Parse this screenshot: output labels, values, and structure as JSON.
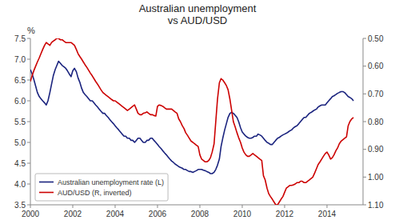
{
  "chart_data": {
    "type": "line",
    "title": "Australian unemployment\nvs AUD/USD",
    "ylabel": "%",
    "xlim": [
      2000,
      2015.7
    ],
    "xticks": [
      2000,
      2002,
      2004,
      2006,
      2008,
      2010,
      2012,
      2014
    ],
    "ylim": [
      3.5,
      7.5
    ],
    "yticks": [
      3.5,
      {
        "value": 4.0,
        "label": "4.0"
      },
      4.5,
      {
        "value": 5.0,
        "label": "5.0"
      },
      5.5,
      {
        "value": 6.0,
        "label": "6.0"
      },
      6.5,
      {
        "value": 7.0,
        "label": "7.0"
      },
      7.5
    ],
    "y2lim": [
      1.1,
      0.5
    ],
    "y2ticks": [
      {
        "value": 0.5,
        "label": "0.50"
      },
      {
        "value": 0.6,
        "label": "0.60"
      },
      {
        "value": 0.7,
        "label": "0.70"
      },
      {
        "value": 0.8,
        "label": "0.80"
      },
      {
        "value": 0.9,
        "label": "0.90"
      },
      {
        "value": 1.0,
        "label": "1.00"
      },
      {
        "value": 1.1,
        "label": "1.10"
      }
    ],
    "grid": false,
    "legend": "lower left",
    "x": [
      2000.0,
      2000.08,
      2000.17,
      2000.25,
      2000.33,
      2000.42,
      2000.5,
      2000.58,
      2000.67,
      2000.75,
      2000.83,
      2000.92,
      2001.0,
      2001.08,
      2001.17,
      2001.25,
      2001.33,
      2001.42,
      2001.5,
      2001.58,
      2001.67,
      2001.75,
      2001.83,
      2001.92,
      2002.0,
      2002.08,
      2002.17,
      2002.25,
      2002.33,
      2002.42,
      2002.5,
      2002.58,
      2002.67,
      2002.75,
      2002.83,
      2002.92,
      2003.0,
      2003.08,
      2003.17,
      2003.25,
      2003.33,
      2003.42,
      2003.5,
      2003.58,
      2003.67,
      2003.75,
      2003.83,
      2003.92,
      2004.0,
      2004.08,
      2004.17,
      2004.25,
      2004.33,
      2004.42,
      2004.5,
      2004.58,
      2004.67,
      2004.75,
      2004.83,
      2004.92,
      2005.0,
      2005.08,
      2005.17,
      2005.25,
      2005.33,
      2005.42,
      2005.5,
      2005.58,
      2005.67,
      2005.75,
      2005.83,
      2005.92,
      2006.0,
      2006.08,
      2006.17,
      2006.25,
      2006.33,
      2006.42,
      2006.5,
      2006.58,
      2006.67,
      2006.75,
      2006.83,
      2006.92,
      2007.0,
      2007.08,
      2007.17,
      2007.25,
      2007.33,
      2007.42,
      2007.5,
      2007.58,
      2007.67,
      2007.75,
      2007.83,
      2007.92,
      2008.0,
      2008.08,
      2008.17,
      2008.25,
      2008.33,
      2008.42,
      2008.5,
      2008.58,
      2008.67,
      2008.75,
      2008.83,
      2008.92,
      2009.0,
      2009.08,
      2009.17,
      2009.25,
      2009.33,
      2009.42,
      2009.5,
      2009.58,
      2009.67,
      2009.75,
      2009.83,
      2009.92,
      2010.0,
      2010.08,
      2010.17,
      2010.25,
      2010.33,
      2010.42,
      2010.5,
      2010.58,
      2010.67,
      2010.75,
      2010.83,
      2010.92,
      2011.0,
      2011.08,
      2011.17,
      2011.25,
      2011.33,
      2011.42,
      2011.5,
      2011.58,
      2011.67,
      2011.75,
      2011.83,
      2011.92,
      2012.0,
      2012.08,
      2012.17,
      2012.25,
      2012.33,
      2012.42,
      2012.5,
      2012.58,
      2012.67,
      2012.75,
      2012.83,
      2012.92,
      2013.0,
      2013.08,
      2013.17,
      2013.25,
      2013.33,
      2013.42,
      2013.5,
      2013.58,
      2013.67,
      2013.75,
      2013.83,
      2013.92,
      2014.0,
      2014.08,
      2014.17,
      2014.25,
      2014.33,
      2014.42,
      2014.5,
      2014.58,
      2014.67,
      2014.75,
      2014.83,
      2014.92,
      2015.0,
      2015.08,
      2015.17,
      2015.25
    ],
    "series": [
      {
        "name": "Australian unemployment rate (L)",
        "color": "#1a237e",
        "values": [
          6.75,
          6.65,
          6.5,
          6.35,
          6.2,
          6.1,
          6.05,
          6.0,
          5.95,
          5.9,
          6.0,
          6.2,
          6.4,
          6.6,
          6.75,
          6.85,
          6.95,
          6.9,
          6.85,
          6.82,
          6.78,
          6.72,
          6.65,
          6.58,
          6.72,
          6.78,
          6.7,
          6.55,
          6.45,
          6.3,
          6.2,
          6.15,
          6.1,
          6.05,
          6.0,
          6.0,
          5.95,
          5.9,
          5.85,
          5.8,
          5.75,
          5.7,
          5.7,
          5.65,
          5.6,
          5.55,
          5.5,
          5.45,
          5.4,
          5.35,
          5.3,
          5.25,
          5.2,
          5.15,
          5.15,
          5.1,
          5.1,
          5.05,
          5.05,
          5.0,
          5.05,
          5.1,
          5.1,
          5.05,
          5.0,
          5.0,
          5.05,
          5.05,
          5.1,
          5.1,
          5.05,
          5.0,
          4.95,
          4.9,
          4.85,
          4.8,
          4.75,
          4.7,
          4.65,
          4.6,
          4.55,
          4.52,
          4.48,
          4.45,
          4.42,
          4.4,
          4.38,
          4.35,
          4.35,
          4.32,
          4.3,
          4.3,
          4.28,
          4.3,
          4.32,
          4.35,
          4.35,
          4.35,
          4.33,
          4.32,
          4.3,
          4.28,
          4.25,
          4.25,
          4.28,
          4.35,
          4.45,
          4.6,
          4.9,
          5.1,
          5.3,
          5.45,
          5.6,
          5.7,
          5.72,
          5.7,
          5.65,
          5.6,
          5.5,
          5.35,
          5.25,
          5.2,
          5.15,
          5.12,
          5.1,
          5.1,
          5.12,
          5.15,
          5.15,
          5.2,
          5.18,
          5.15,
          5.1,
          5.05,
          5.0,
          4.98,
          4.95,
          4.95,
          5.0,
          5.05,
          5.1,
          5.12,
          5.15,
          5.18,
          5.2,
          5.22,
          5.25,
          5.28,
          5.3,
          5.35,
          5.38,
          5.4,
          5.45,
          5.5,
          5.55,
          5.6,
          5.6,
          5.65,
          5.7,
          5.72,
          5.75,
          5.78,
          5.8,
          5.85,
          5.88,
          5.9,
          5.9,
          5.9,
          5.95,
          6.0,
          6.05,
          6.1,
          6.12,
          6.15,
          6.18,
          6.2,
          6.22,
          6.22,
          6.2,
          6.15,
          6.1,
          6.08,
          6.05,
          6.0
        ]
      },
      {
        "name": "AUD/USD (R, inverted)",
        "color": "#cc0000",
        "axis": "y2",
        "values": [
          0.655,
          0.635,
          0.615,
          0.6,
          0.585,
          0.57,
          0.555,
          0.54,
          0.525,
          0.515,
          0.52,
          0.525,
          0.515,
          0.51,
          0.505,
          0.5,
          0.5,
          0.505,
          0.505,
          0.51,
          0.515,
          0.515,
          0.515,
          0.515,
          0.52,
          0.525,
          0.54,
          0.555,
          0.565,
          0.575,
          0.585,
          0.595,
          0.605,
          0.615,
          0.625,
          0.635,
          0.645,
          0.655,
          0.665,
          0.675,
          0.685,
          0.695,
          0.7,
          0.705,
          0.71,
          0.715,
          0.72,
          0.725,
          0.725,
          0.73,
          0.735,
          0.74,
          0.745,
          0.75,
          0.755,
          0.76,
          0.755,
          0.75,
          0.745,
          0.74,
          0.755,
          0.77,
          0.775,
          0.775,
          0.77,
          0.768,
          0.765,
          0.77,
          0.775,
          0.775,
          0.778,
          0.78,
          0.745,
          0.74,
          0.742,
          0.745,
          0.75,
          0.755,
          0.755,
          0.755,
          0.755,
          0.76,
          0.765,
          0.77,
          0.79,
          0.8,
          0.815,
          0.825,
          0.84,
          0.85,
          0.86,
          0.87,
          0.875,
          0.88,
          0.885,
          0.89,
          0.92,
          0.935,
          0.94,
          0.945,
          0.945,
          0.94,
          0.93,
          0.91,
          0.88,
          0.8,
          0.72,
          0.66,
          0.645,
          0.65,
          0.66,
          0.67,
          0.685,
          0.72,
          0.76,
          0.8,
          0.82,
          0.84,
          0.858,
          0.875,
          0.895,
          0.91,
          0.92,
          0.925,
          0.925,
          0.92,
          0.915,
          0.92,
          0.925,
          0.93,
          0.935,
          0.94,
          0.995,
          1.01,
          1.04,
          1.06,
          1.07,
          1.08,
          1.09,
          1.1,
          1.1,
          1.09,
          1.08,
          1.07,
          1.055,
          1.04,
          1.035,
          1.03,
          1.03,
          1.028,
          1.025,
          1.02,
          1.02,
          1.015,
          1.015,
          1.02,
          1.02,
          1.015,
          1.01,
          1.005,
          1.0,
          0.985,
          0.97,
          0.955,
          0.945,
          0.935,
          0.925,
          0.915,
          0.91,
          0.92,
          0.935,
          0.93,
          0.92,
          0.905,
          0.895,
          0.88,
          0.87,
          0.865,
          0.86,
          0.855,
          0.815,
          0.8,
          0.79,
          0.785
        ]
      }
    ]
  }
}
